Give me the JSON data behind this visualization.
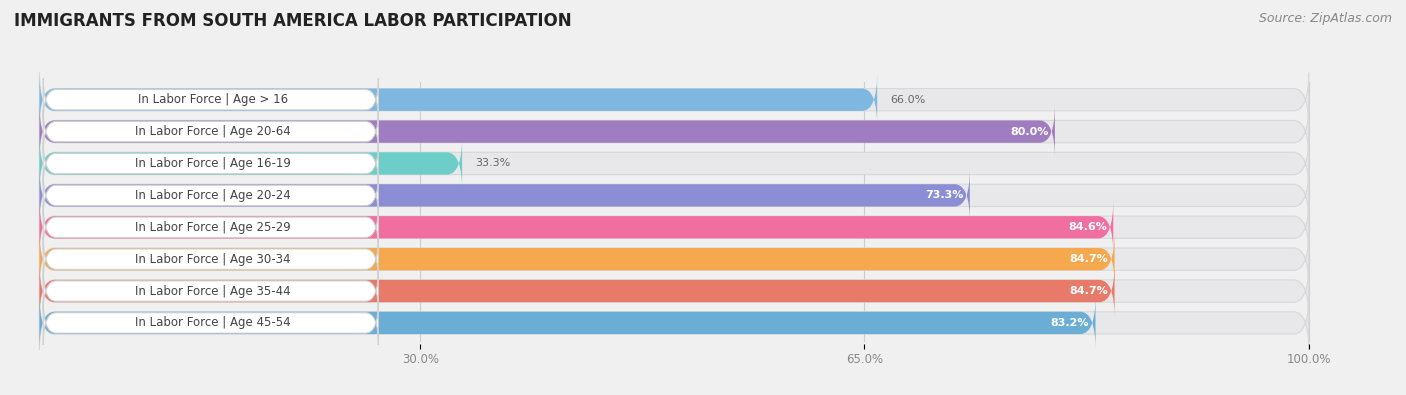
{
  "title": "IMMIGRANTS FROM SOUTH AMERICA LABOR PARTICIPATION",
  "source": "Source: ZipAtlas.com",
  "categories": [
    "In Labor Force | Age > 16",
    "In Labor Force | Age 20-64",
    "In Labor Force | Age 16-19",
    "In Labor Force | Age 20-24",
    "In Labor Force | Age 25-29",
    "In Labor Force | Age 30-34",
    "In Labor Force | Age 35-44",
    "In Labor Force | Age 45-54"
  ],
  "values": [
    66.0,
    80.0,
    33.3,
    73.3,
    84.6,
    84.7,
    84.7,
    83.2
  ],
  "bar_colors": [
    "#7eb8e0",
    "#a07cc0",
    "#6dcdc8",
    "#8b8ed4",
    "#f06fa0",
    "#f5a84e",
    "#e87a6a",
    "#6aaed6"
  ],
  "value_inside": [
    false,
    true,
    false,
    true,
    true,
    true,
    true,
    true
  ],
  "x_ticks": [
    30.0,
    65.0,
    100.0
  ],
  "x_tick_labels": [
    "30.0%",
    "65.0%",
    "100.0%"
  ],
  "xmin": 0.0,
  "xmax": 100.0,
  "background_color": "#f0f0f0",
  "bar_bg_color": "#e8e8ea",
  "label_box_color": "white",
  "label_box_edge_color": "#d0d0d0",
  "title_fontsize": 12,
  "source_fontsize": 9,
  "bar_label_fontsize": 8,
  "cat_label_fontsize": 8.5
}
